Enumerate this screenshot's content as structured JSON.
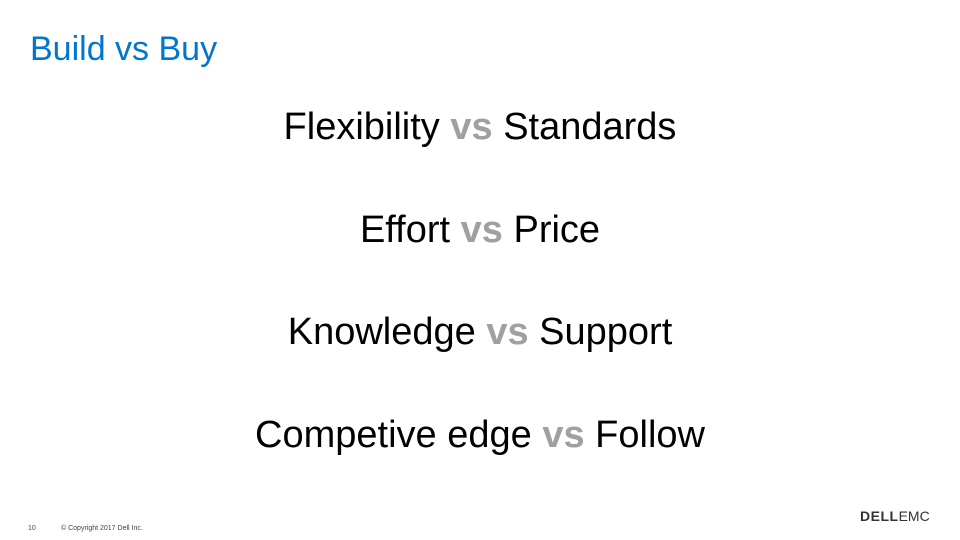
{
  "slide": {
    "title": "Build vs Buy",
    "rows": [
      {
        "left": "Flexibility",
        "vs": "vs",
        "right": "Standards"
      },
      {
        "left": "Effort",
        "vs": "vs",
        "right": "Price"
      },
      {
        "left": "Knowledge",
        "vs": "vs",
        "right": "Support"
      },
      {
        "left": "Competive edge",
        "vs": "vs",
        "right": "Follow"
      }
    ],
    "footer": {
      "page_number": "10",
      "copyright": "© Copyright 2017 Dell Inc."
    },
    "logo": {
      "dell": "DELL",
      "emc": "EMC"
    }
  },
  "colors": {
    "title": "#0076ce",
    "text": "#000000",
    "vs": "#a0a0a0"
  }
}
